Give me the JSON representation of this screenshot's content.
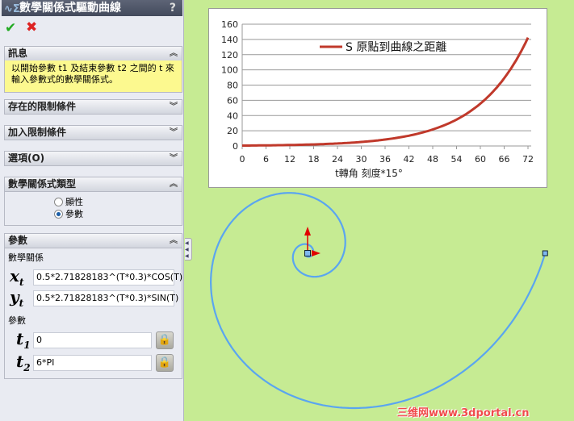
{
  "panel": {
    "title": "數學關係式驅動曲線",
    "help": "?",
    "ok_icon": "check-icon",
    "cancel_icon": "x-icon",
    "sections": {
      "message": {
        "label": "訊息",
        "text": "以開始參數 t1 及結束參數 t2 之間的 t 來輸入參數式的數學關係式。"
      },
      "existing_relations": {
        "label": "存在的限制條件"
      },
      "add_relations": {
        "label": "加入限制條件"
      },
      "options": {
        "label": "選項(O)"
      },
      "equation_type": {
        "label": "數學關係式類型",
        "options": [
          "顯性",
          "參數"
        ],
        "selected": "參數"
      },
      "parameters": {
        "label": "參數",
        "equation_label": "數學關係",
        "xt": "0.5*2.71828183^(T*0.3)*COS(T)",
        "yt": "0.5*2.71828183^(T*0.3)*SIN(T)",
        "param_label": "參數",
        "t1": "0",
        "t2": "6*PI",
        "x_var": "x",
        "y_var": "y",
        "t_var": "t",
        "sub_t": "t",
        "sub_1": "1",
        "sub_2": "2"
      }
    }
  },
  "chart_data": {
    "type": "line",
    "x": [
      0,
      6,
      12,
      18,
      24,
      30,
      36,
      42,
      48,
      54,
      60,
      66,
      72
    ],
    "series": [
      {
        "name": "S 原點到曲線之距離",
        "values": [
          0.5,
          0.8,
          1.28,
          2.06,
          3.29,
          5.27,
          8.45,
          13.5,
          21.7,
          34.7,
          55.6,
          89.0,
          142.4
        ],
        "color": "#c0392b"
      }
    ],
    "xticks": [
      0,
      6,
      12,
      18,
      24,
      30,
      36,
      42,
      48,
      54,
      60,
      66,
      72
    ],
    "yticks": [
      0,
      20,
      40,
      60,
      80,
      100,
      120,
      140,
      160
    ],
    "xlabel": "t轉角  刻度*15°",
    "ylim": [
      0,
      160
    ],
    "xlim": [
      0,
      72
    ],
    "grid": true,
    "legend": "top-center"
  },
  "canvas": {
    "curve_color": "#5aa5f0",
    "axis_color": "#e00000",
    "watermark": "三维网www.3dportal.cn"
  }
}
